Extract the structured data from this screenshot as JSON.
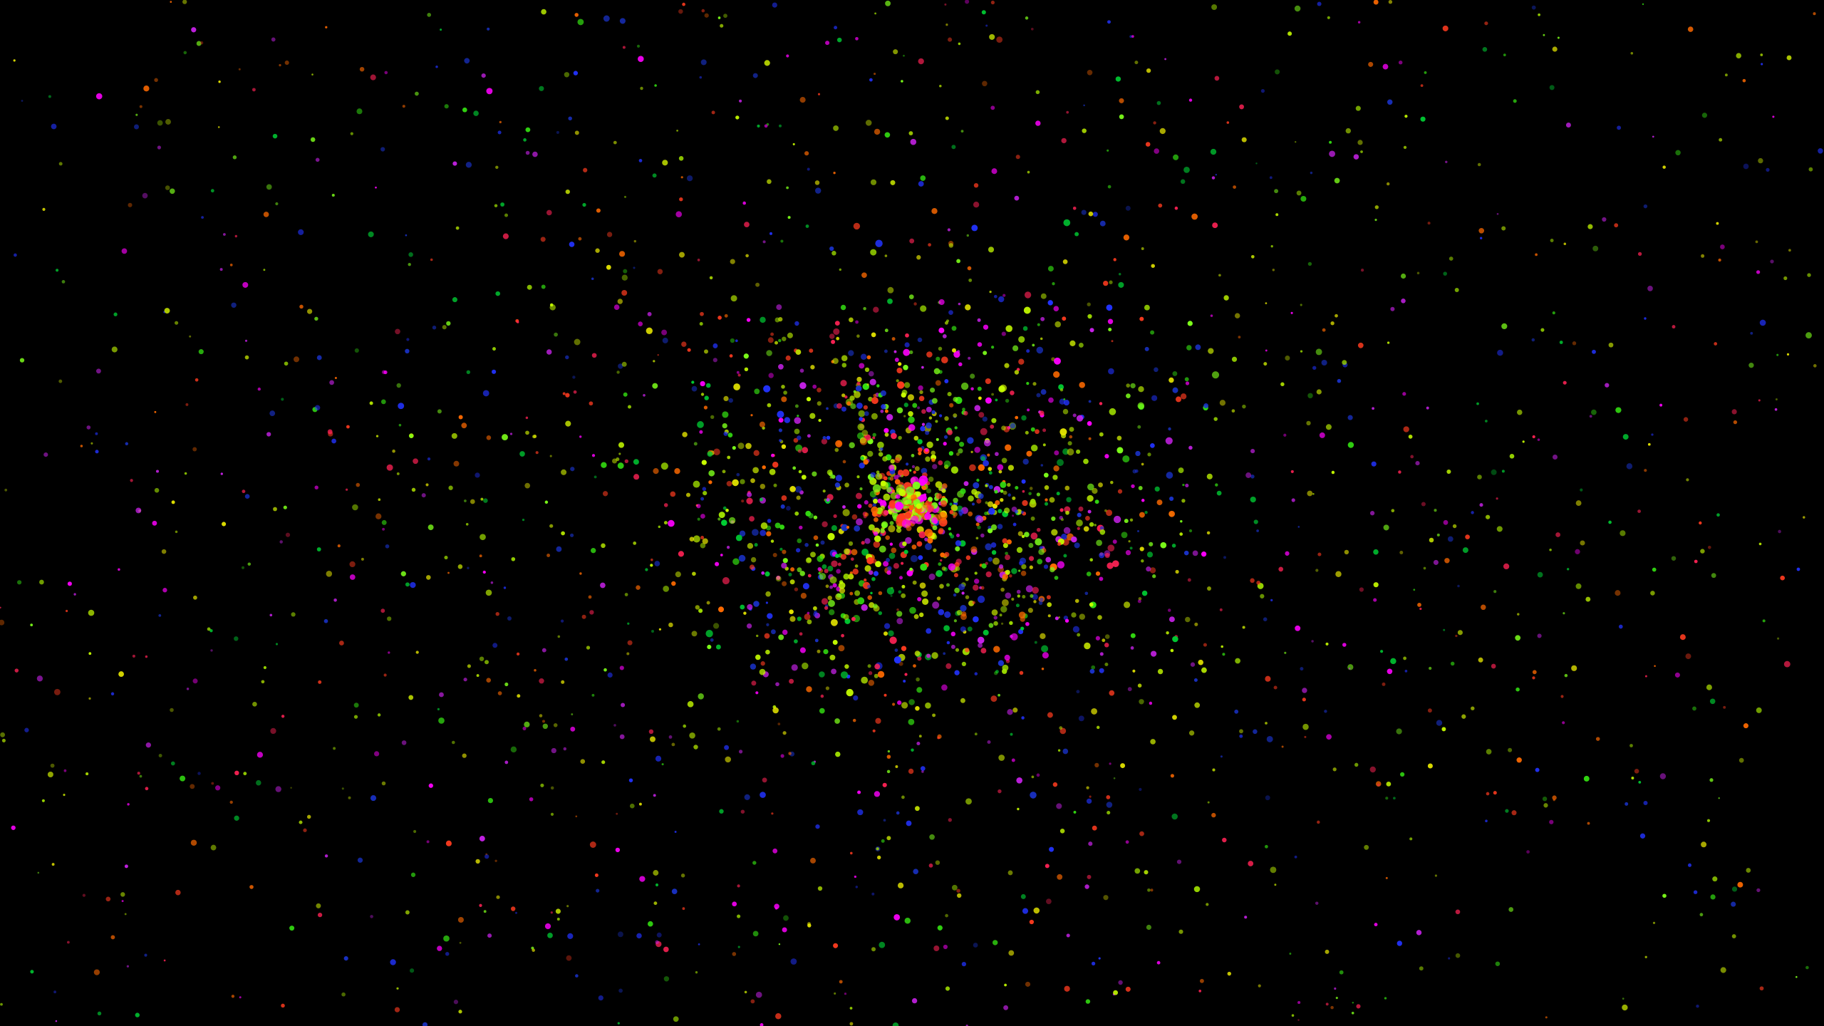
{
  "scene": {
    "description_type": "particle-field",
    "background_color": "#000000",
    "palette": [
      "#ff3b1f",
      "#ff6a00",
      "#c8ff00",
      "#7dff1a",
      "#33dd11",
      "#b8d400",
      "#e8e800",
      "#ff00ff",
      "#cc22ee",
      "#2233ff",
      "#1a33cc",
      "#ff2255",
      "#a0e000",
      "#00cc33"
    ],
    "particle_count": 3000,
    "core_density": 0.35,
    "core_spread_fraction": 0.06,
    "halo_spread_fraction": 0.22,
    "random_seed": 7
  }
}
